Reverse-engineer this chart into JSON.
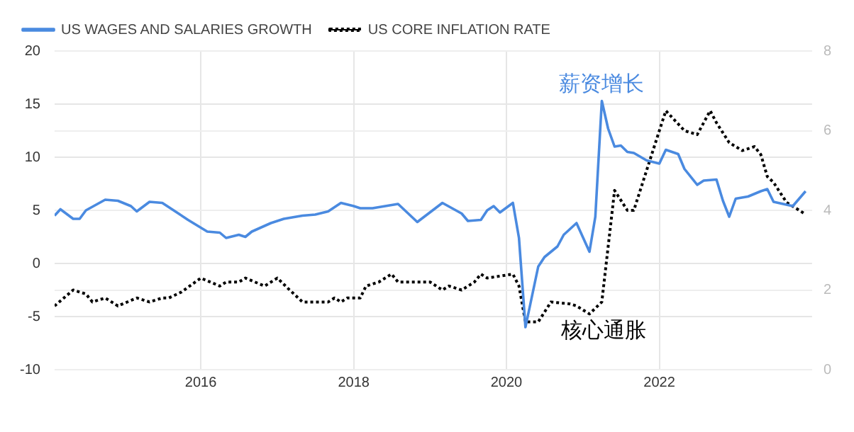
{
  "chart_data": {
    "type": "line",
    "series": [
      {
        "name": "US WAGES AND SALARIES GROWTH",
        "color": "#4a8ae0",
        "x": [
          "2014-02",
          "2014-03",
          "2014-05",
          "2014-06",
          "2014-07",
          "2014-10",
          "2014-12",
          "2015-02",
          "2015-03",
          "2015-05",
          "2015-07",
          "2015-09",
          "2015-11",
          "2016-02",
          "2016-04",
          "2016-05",
          "2016-07",
          "2016-08",
          "2016-09",
          "2016-12",
          "2017-02",
          "2017-05",
          "2017-07",
          "2017-09",
          "2017-11",
          "2018-01",
          "2018-02",
          "2018-04",
          "2018-08",
          "2018-11",
          "2019-03",
          "2019-06",
          "2019-07",
          "2019-09",
          "2019-10",
          "2019-11",
          "2019-12",
          "2020-02",
          "2020-03",
          "2020-04",
          "2020-06",
          "2020-07",
          "2020-09",
          "2020-10",
          "2020-12",
          "2021-02",
          "2021-03",
          "2021-04",
          "2021-05",
          "2021-06",
          "2021-07",
          "2021-08",
          "2021-09",
          "2021-11",
          "2022-01",
          "2022-02",
          "2022-04",
          "2022-05",
          "2022-07",
          "2022-08",
          "2022-10",
          "2022-11",
          "2022-12",
          "2023-01",
          "2023-03",
          "2023-05",
          "2023-06",
          "2023-07",
          "2023-10",
          "2023-12"
        ],
        "values": [
          4.5,
          5.1,
          4.2,
          4.2,
          5.0,
          6.0,
          5.9,
          5.4,
          4.9,
          5.8,
          5.7,
          4.9,
          4.1,
          3.0,
          2.9,
          2.4,
          2.7,
          2.5,
          3.0,
          3.8,
          4.2,
          4.5,
          4.6,
          4.9,
          5.7,
          5.4,
          5.2,
          5.2,
          5.6,
          3.9,
          5.7,
          4.7,
          4.0,
          4.1,
          5.0,
          5.4,
          4.8,
          5.7,
          2.4,
          -6.0,
          -0.3,
          0.6,
          1.6,
          2.7,
          3.8,
          1.1,
          4.4,
          15.3,
          12.7,
          11.0,
          11.1,
          10.5,
          10.4,
          9.7,
          9.4,
          10.7,
          10.3,
          8.9,
          7.4,
          7.8,
          7.9,
          5.9,
          4.4,
          6.1,
          6.3,
          6.8,
          7.0,
          5.8,
          5.4,
          6.8
        ]
      },
      {
        "name": "US CORE INFLATION RATE",
        "color": "#000000",
        "axis": "y2",
        "line_style": "dotted",
        "x": [
          "2014-02",
          "2014-05",
          "2014-07",
          "2014-08",
          "2014-10",
          "2014-12",
          "2015-03",
          "2015-05",
          "2015-07",
          "2015-08",
          "2015-10",
          "2016-01",
          "2016-04",
          "2016-05",
          "2016-07",
          "2016-08",
          "2016-11",
          "2017-01",
          "2017-03",
          "2017-05",
          "2017-09",
          "2017-10",
          "2017-11",
          "2017-12",
          "2018-02",
          "2018-03",
          "2018-05",
          "2018-07",
          "2018-08",
          "2018-10",
          "2019-01",
          "2019-03",
          "2019-04",
          "2019-06",
          "2019-08",
          "2019-09",
          "2019-10",
          "2020-02",
          "2020-03",
          "2020-04",
          "2020-06",
          "2020-08",
          "2020-11",
          "2020-12",
          "2021-01",
          "2021-02",
          "2021-04",
          "2021-06",
          "2021-08",
          "2021-09",
          "2021-11",
          "2022-01",
          "2022-02",
          "2022-05",
          "2022-07",
          "2022-09",
          "2022-10",
          "2022-12",
          "2023-02",
          "2023-04",
          "2023-05",
          "2023-06",
          "2023-07",
          "2023-09",
          "2023-11",
          "2023-12"
        ],
        "values": [
          1.6,
          2.0,
          1.9,
          1.7,
          1.8,
          1.6,
          1.8,
          1.7,
          1.8,
          1.8,
          1.95,
          2.3,
          2.1,
          2.2,
          2.2,
          2.3,
          2.1,
          2.3,
          2.0,
          1.7,
          1.7,
          1.8,
          1.7,
          1.8,
          1.8,
          2.1,
          2.2,
          2.4,
          2.2,
          2.2,
          2.2,
          2.0,
          2.1,
          2.0,
          2.2,
          2.4,
          2.3,
          2.4,
          2.1,
          1.2,
          1.2,
          1.7,
          1.65,
          1.6,
          1.5,
          1.4,
          1.7,
          4.5,
          4.0,
          4.0,
          5.0,
          6.0,
          6.5,
          6.0,
          5.9,
          6.5,
          6.2,
          5.7,
          5.5,
          5.6,
          5.4,
          4.85,
          4.7,
          4.2,
          4.0,
          3.9
        ]
      }
    ],
    "xlim": [
      "2014-02",
      "2024-01"
    ],
    "xticks": [
      "2016",
      "2018",
      "2020",
      "2022"
    ],
    "ylim": [
      -10,
      20
    ],
    "yticks": [
      -10,
      -5,
      0,
      5,
      10,
      15,
      20
    ],
    "y2lim": [
      0,
      8
    ],
    "y2ticks": [
      0,
      2,
      4,
      6,
      8
    ],
    "grid": true,
    "legend": "top left",
    "marker": "none",
    "annotations": [
      {
        "text": "薪资增长",
        "x": "2021-04",
        "y": 15.3
      },
      {
        "text": "核心通胀",
        "x": "2021-02",
        "y": -4.6
      }
    ]
  }
}
